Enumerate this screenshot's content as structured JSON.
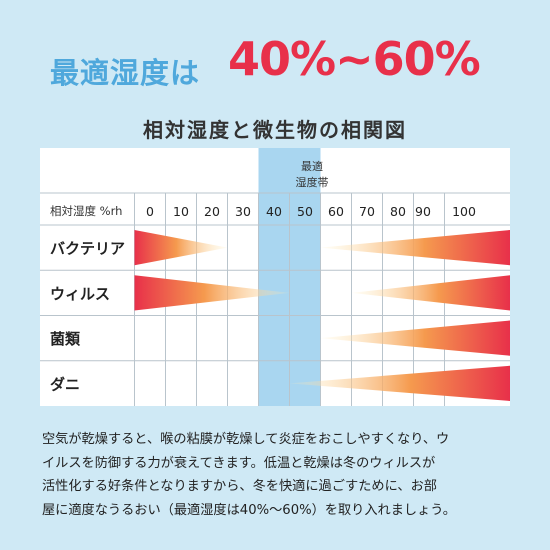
{
  "headline": {
    "prefix": "最適湿度は",
    "range": "40%~60%"
  },
  "subtitle": "相対湿度と微生物の相関図",
  "chart_data": {
    "type": "table",
    "band_label_line1": "最適",
    "band_label_line2": "湿度帯",
    "axis_label": "相対湿度 %rh",
    "ticks": [
      "0",
      "10",
      "20",
      "30",
      "40",
      "50",
      "60",
      "70",
      "80",
      "90",
      "100"
    ],
    "optimal_range": [
      40,
      60
    ],
    "rows": [
      {
        "name": "バクテリア",
        "low_side_fades_at": 30,
        "high_side_starts_at": 60
      },
      {
        "name": "ウィルス",
        "low_side_fades_at": 50,
        "high_side_starts_at": 70
      },
      {
        "name": "菌類",
        "low_side_fades_at": null,
        "high_side_starts_at": 60
      },
      {
        "name": "ダニ",
        "low_side_fades_at": null,
        "high_side_starts_at": 50
      }
    ],
    "colors": {
      "strong": "#e8304a",
      "mid": "#f59a4e",
      "fade": "#fff1c2",
      "band": "#a9d6f0"
    }
  },
  "footer_lines": [
    "空気が乾燥すると、喉の粘膜が乾燥して炎症をおこしやすくなり、ウ",
    "イルスを防御する力が衰えてきます。低温と乾燥は冬のウィルスが",
    "活性化する好条件となりますから、冬を快適に過ごすために、お部",
    "屋に適度なうるおい（最適湿度は40%〜60%）を取り入れましょう。"
  ]
}
